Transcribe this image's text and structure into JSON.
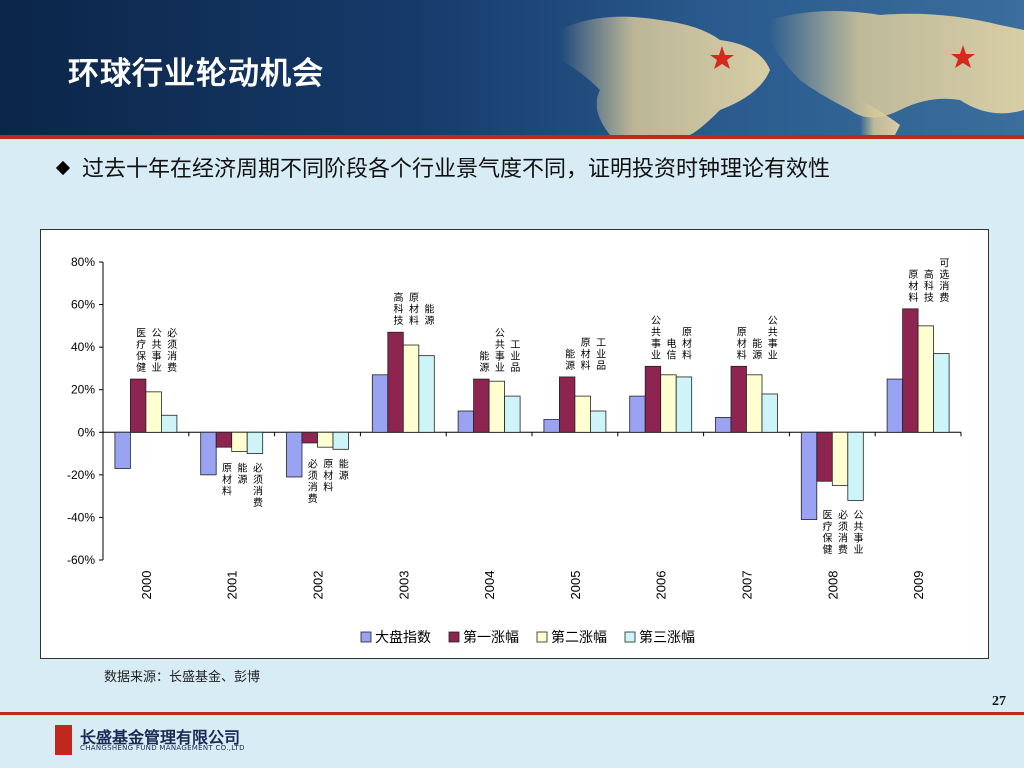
{
  "slide": {
    "title": "环球行业轮动机会",
    "bullet": "过去十年在经济周期不同阶段各个行业景气度不同，证明投资时钟理论有效性",
    "source": "数据来源：长盛基金、彭博",
    "page_number": "27"
  },
  "company": {
    "name_cn": "长盛基金管理有限公司",
    "name_en": "CHANGSHENG FUND MANAGEMENT CO.,LTD",
    "brand_color": "#c0281e"
  },
  "chart_data": {
    "type": "bar",
    "categories": [
      "2000",
      "2001",
      "2002",
      "2003",
      "2004",
      "2005",
      "2006",
      "2007",
      "2008",
      "2009"
    ],
    "ylim": [
      -60,
      80
    ],
    "yticks": [
      -60,
      -40,
      -20,
      0,
      20,
      40,
      60,
      80
    ],
    "ytick_labels": [
      "-60%",
      "-40%",
      "-20%",
      "0%",
      "20%",
      "40%",
      "60%",
      "80%"
    ],
    "grid": false,
    "legend_position": "bottom",
    "series": [
      {
        "name": "大盘指数",
        "color": "#9aa2f2",
        "values": [
          -17,
          -20,
          -21,
          27,
          10,
          6,
          17,
          7,
          -41,
          25
        ]
      },
      {
        "name": "第一涨幅",
        "color": "#8e2450",
        "values": [
          25,
          -7,
          -5,
          47,
          25,
          26,
          31,
          31,
          -23,
          58
        ]
      },
      {
        "name": "第二涨幅",
        "color": "#ffffd2",
        "values": [
          19,
          -9,
          -7,
          41,
          24,
          17,
          27,
          27,
          -25,
          50
        ]
      },
      {
        "name": "第三涨幅",
        "color": "#cdf5f8",
        "values": [
          8,
          -10,
          -8,
          36,
          17,
          10,
          26,
          18,
          -32,
          37
        ]
      }
    ],
    "sector_labels": [
      [
        "医疗保健",
        "公共事业",
        "必须消费"
      ],
      [
        "原材料",
        "能源",
        "必须消费"
      ],
      [
        "必须消费",
        "原材料",
        "能源"
      ],
      [
        "高科技",
        "原材料",
        "能源"
      ],
      [
        "能源",
        "公共事业",
        "工业品"
      ],
      [
        "能源",
        "原材料",
        "工业品"
      ],
      [
        "公共事业",
        "电信",
        "原材料"
      ],
      [
        "原材料",
        "能源",
        "公共事业"
      ],
      [
        "医疗保健",
        "必须消费",
        "公共事业"
      ],
      [
        "原材料",
        "高科技",
        "可选消费"
      ]
    ]
  }
}
